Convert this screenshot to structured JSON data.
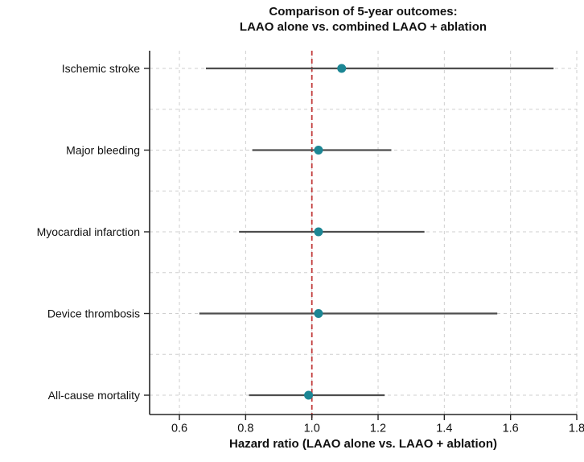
{
  "chart_data": {
    "type": "scatter",
    "subtype": "forest-plot",
    "title_lines": [
      "Comparison of 5-year outcomes:",
      "LAAO alone vs. combined LAAO + ablation"
    ],
    "xlabel": "Hazard ratio (LAAO alone vs. LAAO + ablation)",
    "ylabel": "",
    "categories": [
      "Ischemic stroke",
      "Major bleeding",
      "Myocardial infarction",
      "Device thrombosis",
      "All-cause mortality"
    ],
    "series": [
      {
        "name": "Hazard ratio (point estimate)",
        "values": [
          1.09,
          1.02,
          1.02,
          1.02,
          0.99
        ],
        "ci_low": [
          0.68,
          0.82,
          0.78,
          0.66,
          0.81
        ],
        "ci_high": [
          1.73,
          1.24,
          1.34,
          1.56,
          1.22
        ]
      }
    ],
    "reference_line_x": 1.0,
    "xlim": [
      0.51,
      1.8
    ],
    "xticks": [
      0.6,
      0.8,
      1.0,
      1.2,
      1.4,
      1.6,
      1.8
    ],
    "grid": true,
    "legend": "none",
    "colors": {
      "marker": "#1c8694",
      "ci_line": "#4d4d4d",
      "reference": "#c23b3b",
      "grid": "#cfcfcf",
      "axis": "#262626",
      "text": "#111111"
    }
  }
}
